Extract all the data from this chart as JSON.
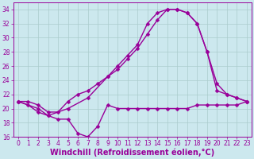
{
  "background_color": "#cce8ee",
  "grid_color": "#aacccc",
  "line_color": "#990099",
  "marker": "D",
  "markersize": 2.5,
  "linewidth": 1.0,
  "xlabel": "Windchill (Refroidissement éolien,°C)",
  "xlabel_fontsize": 7,
  "ylim": [
    16,
    35
  ],
  "xlim": [
    -0.5,
    23.5
  ],
  "yticks": [
    16,
    18,
    20,
    22,
    24,
    26,
    28,
    30,
    32,
    34
  ],
  "xticks": [
    0,
    1,
    2,
    3,
    4,
    5,
    6,
    7,
    8,
    9,
    10,
    11,
    12,
    13,
    14,
    15,
    16,
    17,
    18,
    19,
    20,
    21,
    22,
    23
  ],
  "tick_fontsize": 5.5,
  "curve1_x": [
    0,
    1,
    2,
    3,
    4,
    5,
    6,
    7,
    8,
    9,
    10,
    11,
    12,
    13,
    14,
    15,
    16,
    17,
    18,
    19,
    20,
    21,
    22,
    23
  ],
  "curve1_y": [
    21.0,
    20.5,
    19.5,
    19.0,
    18.5,
    18.5,
    16.5,
    16.0,
    17.5,
    20.5,
    20.0,
    20.0,
    20.0,
    20.0,
    20.0,
    20.0,
    20.0,
    20.0,
    20.5,
    20.5,
    20.5,
    20.5,
    20.5,
    21.0
  ],
  "curve2_x": [
    0,
    1,
    2,
    3,
    4,
    5,
    6,
    7,
    8,
    9,
    10,
    11,
    12,
    13,
    14,
    15,
    16,
    17,
    18,
    19,
    20,
    21,
    22,
    23
  ],
  "curve2_y": [
    21.0,
    21.0,
    20.5,
    19.5,
    19.5,
    21.0,
    22.0,
    22.5,
    23.5,
    24.5,
    25.5,
    27.0,
    28.5,
    30.5,
    32.5,
    34.0,
    34.0,
    33.5,
    32.0,
    28.0,
    23.5,
    22.0,
    21.5,
    21.0
  ],
  "curve3_x": [
    0,
    2,
    3,
    5,
    7,
    9,
    10,
    11,
    12,
    13,
    14,
    15,
    16,
    17,
    18,
    19,
    20,
    21,
    22,
    23
  ],
  "curve3_y": [
    21.0,
    20.0,
    19.0,
    20.0,
    21.5,
    24.5,
    26.0,
    27.5,
    29.0,
    32.0,
    33.5,
    34.0,
    34.0,
    33.5,
    32.0,
    28.0,
    22.5,
    22.0,
    21.5,
    21.0
  ]
}
